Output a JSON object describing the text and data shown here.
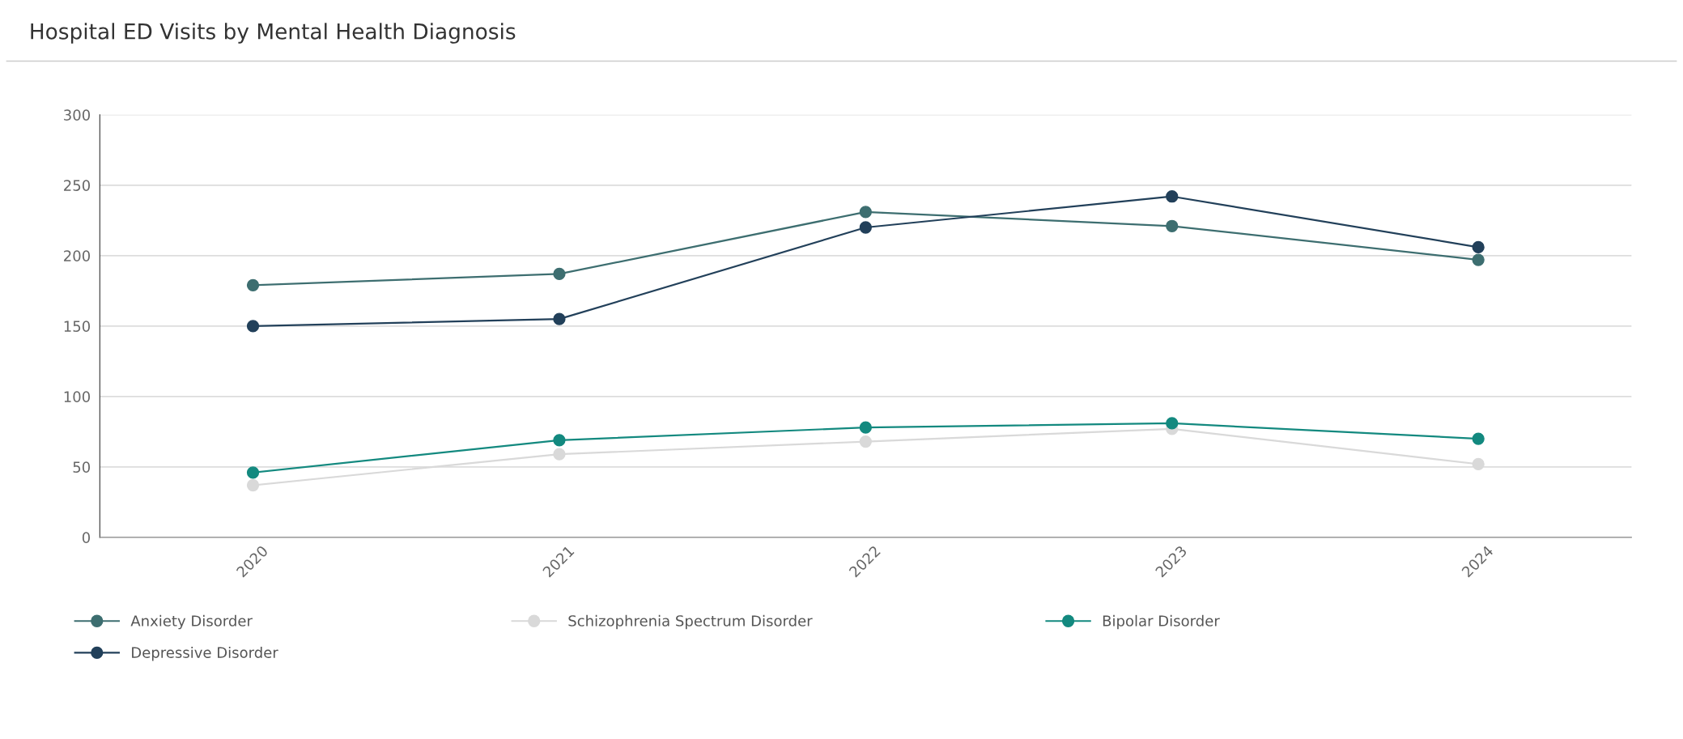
{
  "chart_data": {
    "type": "line",
    "title": "Hospital ED Visits by Mental Health Diagnosis",
    "categories": [
      "2020",
      "2021",
      "2022",
      "2023",
      "2024"
    ],
    "series": [
      {
        "name": "Anxiety Disorder",
        "color": "#3d6e70",
        "values": [
          179,
          187,
          231,
          221,
          197
        ]
      },
      {
        "name": "Depressive Disorder",
        "color": "#22405a",
        "values": [
          150,
          155,
          220,
          242,
          206
        ]
      },
      {
        "name": "Schizophrenia Spectrum Disorder",
        "color": "#d9d9d9",
        "values": [
          37,
          59,
          68,
          77,
          52
        ]
      },
      {
        "name": "Bipolar Disorder",
        "color": "#13897f",
        "values": [
          46,
          69,
          78,
          81,
          70
        ]
      }
    ],
    "ylim": [
      0,
      300
    ],
    "yticks": [
      0,
      50,
      100,
      150,
      200,
      250,
      300
    ],
    "grid": "y",
    "legend": "bottom",
    "marker": "circle",
    "line_style": "solid"
  }
}
